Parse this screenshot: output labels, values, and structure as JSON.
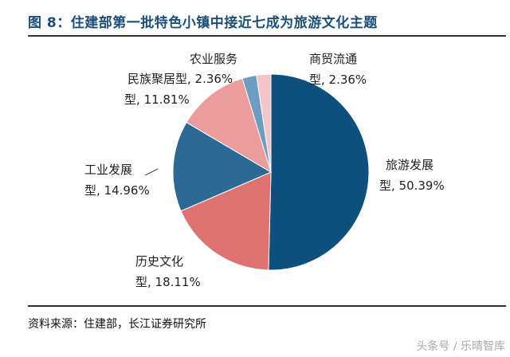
{
  "title": "图 8：住建部第一批特色小镇中接近七成为旅游文化主题",
  "source": "资料来源：住建部，长江证券研究所",
  "watermark": "头条号 / 乐晴智库",
  "chart_data": {
    "type": "pie",
    "title": "图 8：住建部第一批特色小镇中接近七成为旅游文化主题",
    "slices": [
      {
        "name": "旅游发展型",
        "value": 50.39,
        "label": [
          "旅游发展",
          "型, 50.39%"
        ],
        "color": "#0d4f7d"
      },
      {
        "name": "历史文化型",
        "value": 18.11,
        "label": [
          "历史文化",
          "型, 18.11%"
        ],
        "color": "#e07171"
      },
      {
        "name": "工业发展型",
        "value": 14.96,
        "label": [
          "工业发展",
          "型, 14.96%"
        ],
        "color": "#2c6994"
      },
      {
        "name": "民族聚居型",
        "value": 11.81,
        "label": [
          "民族聚居型, 2.36%",
          "型, 11.81%"
        ],
        "color": "#eb9c9b"
      },
      {
        "name": "农业服务型",
        "value": 2.36,
        "label": [
          "农业服务",
          ""
        ],
        "color": "#6d9dc0"
      },
      {
        "name": "商贸流通型",
        "value": 2.36,
        "label": [
          "商贸流通",
          "型, 2.36%"
        ],
        "color": "#f3c5c8"
      }
    ]
  }
}
